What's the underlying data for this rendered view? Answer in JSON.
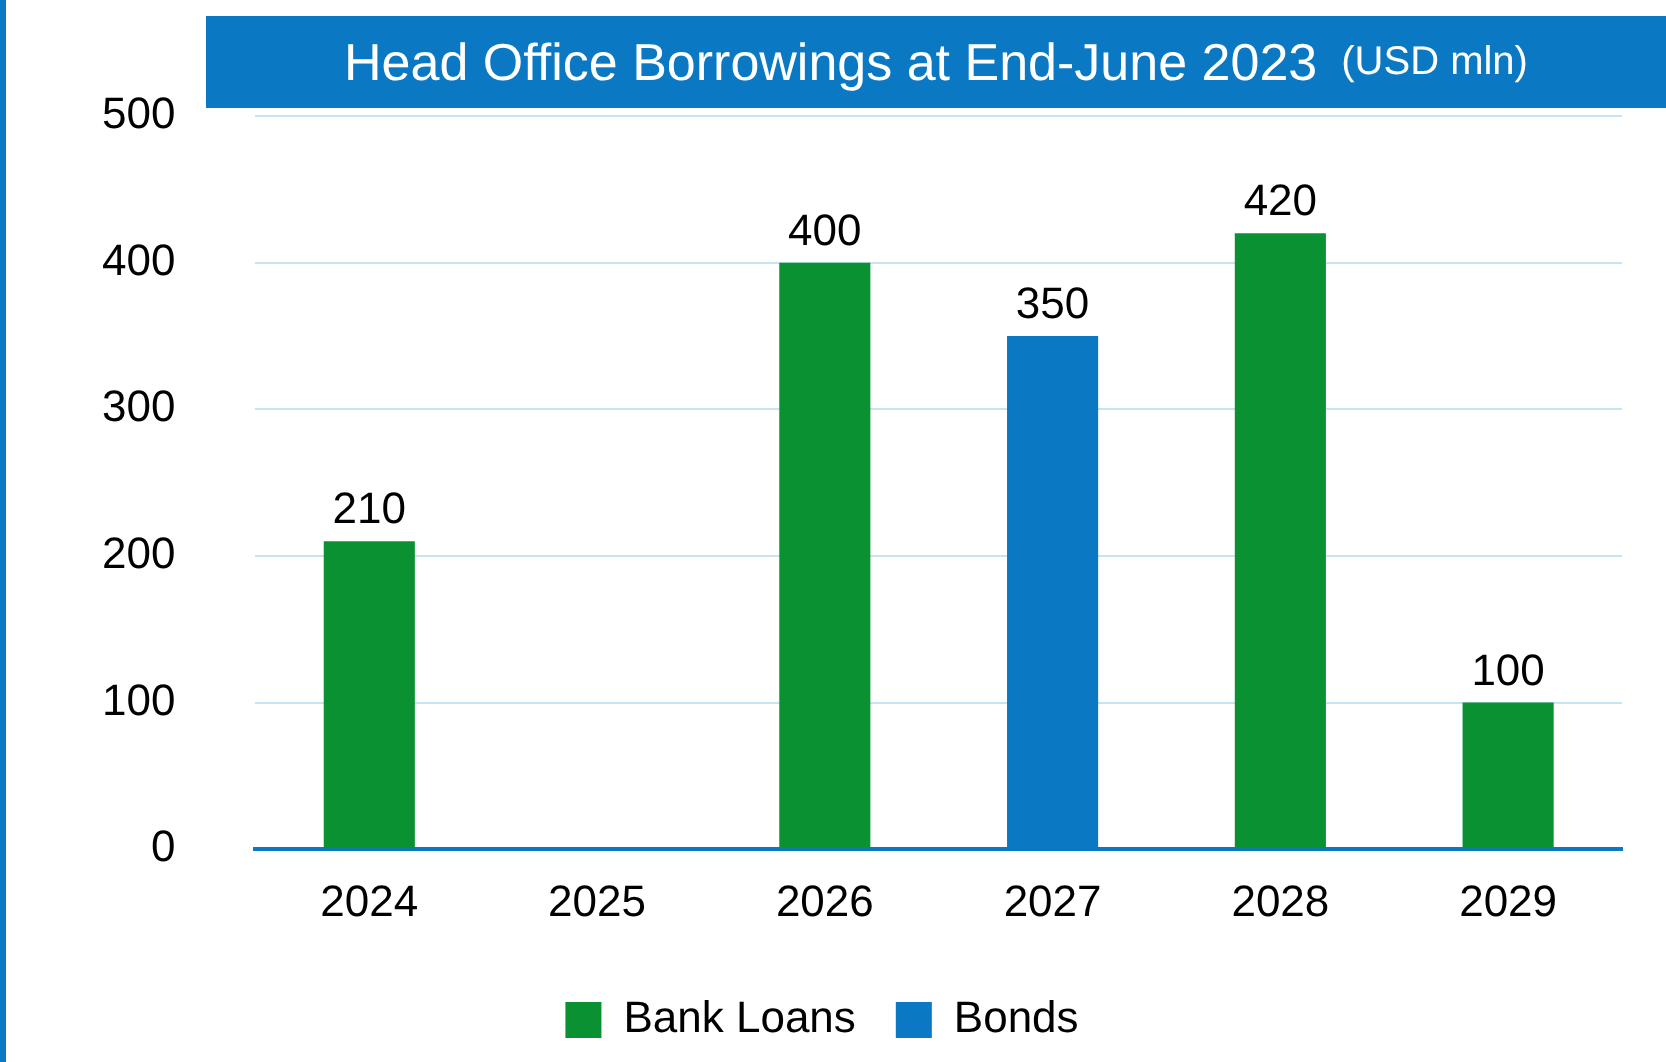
{
  "chart_data": {
    "type": "bar",
    "title": "Head Office Borrowings at End-June 2023",
    "subtitle": "(USD mln)",
    "categories": [
      "2024",
      "2025",
      "2026",
      "2027",
      "2028",
      "2029"
    ],
    "series": [
      {
        "name": "Bank Loans",
        "color": "#0a9132",
        "values": [
          210,
          null,
          400,
          null,
          420,
          100
        ]
      },
      {
        "name": "Bonds",
        "color": "#0a78c2",
        "values": [
          null,
          null,
          null,
          350,
          null,
          null
        ]
      }
    ],
    "ylim": [
      0,
      500
    ],
    "yticks": [
      0,
      100,
      200,
      300,
      400,
      500
    ],
    "grid": "y",
    "legend": "bottom",
    "data_labels": true
  }
}
